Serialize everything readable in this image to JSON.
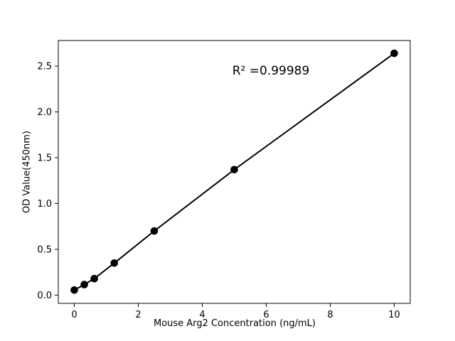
{
  "figure": {
    "background": "#ffffff"
  },
  "chart_data": {
    "type": "scatter",
    "title": "",
    "xlabel": "Mouse Arg2 Concentration (ng/mL)",
    "ylabel": "OD Value(450nm)",
    "annotation": "R² =0.99989",
    "x": [
      0,
      0.3125,
      0.625,
      1.25,
      2.5,
      5,
      10
    ],
    "y": [
      0.055,
      0.115,
      0.18,
      0.35,
      0.7,
      1.37,
      2.64
    ],
    "line": true,
    "marker": "circle",
    "color": "#000000",
    "xlim": [
      -0.5,
      10.5
    ],
    "ylim": [
      -0.09,
      2.78
    ],
    "x_ticks": [
      0,
      2,
      4,
      6,
      8,
      10
    ],
    "x_tick_labels": [
      "0",
      "2",
      "4",
      "6",
      "8",
      "10"
    ],
    "y_ticks": [
      0,
      0.5,
      1.0,
      1.5,
      2.0,
      2.5
    ],
    "y_tick_labels": [
      "0.0",
      "0.5",
      "1.0",
      "1.5",
      "2.0",
      "2.5"
    ],
    "grid": false,
    "legend": null
  }
}
